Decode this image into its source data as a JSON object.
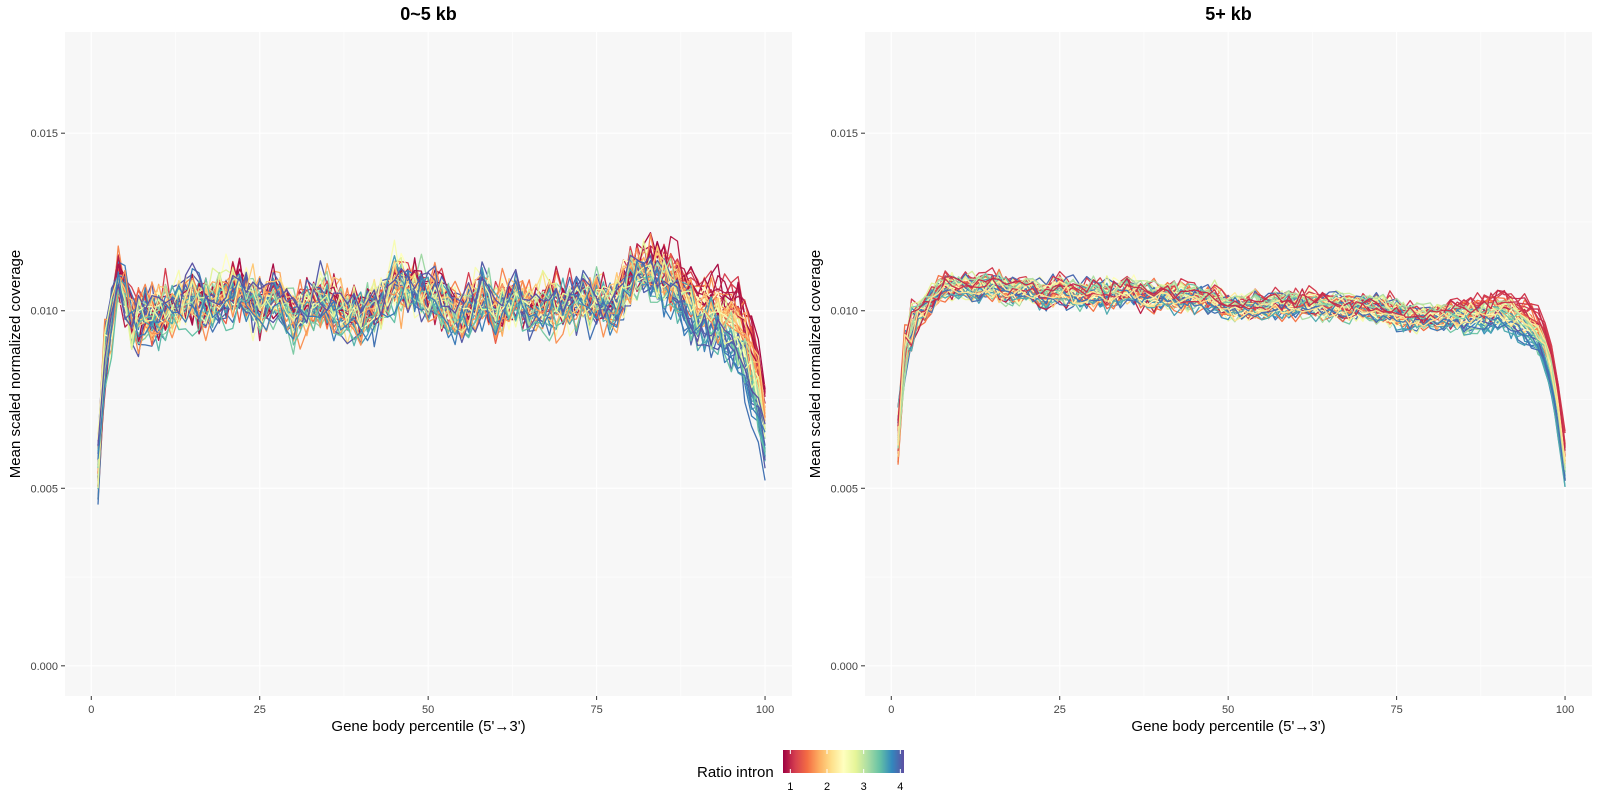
{
  "chart_data": [
    {
      "type": "line",
      "title": "0~5 kb",
      "xlabel": "Gene body percentile (5'→3')",
      "ylabel": "Mean scaled normalized coverage",
      "xlim": [
        -3.9,
        104
      ],
      "ylim": [
        -0.00085,
        0.01785
      ],
      "xticks": [
        0,
        25,
        50,
        75,
        100
      ],
      "yticks": [
        0.0,
        0.005,
        0.01,
        0.015
      ],
      "ytick_labels": [
        "0.000",
        "0.005",
        "0.010",
        "0.015"
      ],
      "grid": true,
      "legend": "bottom",
      "series_count": 48,
      "series_color_value_range": [
        0.8,
        4.1
      ],
      "representative_profile": {
        "x": [
          1,
          2,
          3,
          4,
          5,
          6,
          8,
          10,
          12,
          15,
          18,
          20,
          22,
          25,
          27,
          30,
          33,
          35,
          38,
          40,
          43,
          45,
          48,
          50,
          53,
          55,
          58,
          60,
          63,
          65,
          68,
          70,
          73,
          75,
          78,
          80,
          82,
          84,
          86,
          88,
          90,
          92,
          94,
          96,
          97,
          98,
          99,
          100
        ],
        "y": [
          0.0055,
          0.0085,
          0.0097,
          0.0108,
          0.0104,
          0.0097,
          0.0099,
          0.0098,
          0.0101,
          0.0103,
          0.0102,
          0.0104,
          0.0106,
          0.0101,
          0.0104,
          0.0098,
          0.0101,
          0.0103,
          0.0099,
          0.0098,
          0.0102,
          0.0107,
          0.0106,
          0.0104,
          0.0101,
          0.0099,
          0.0104,
          0.01,
          0.0103,
          0.0099,
          0.0102,
          0.0101,
          0.0103,
          0.0102,
          0.0102,
          0.011,
          0.0112,
          0.0111,
          0.0108,
          0.0104,
          0.01,
          0.0099,
          0.0097,
          0.0094,
          0.009,
          0.0085,
          0.0078,
          0.0068
        ]
      }
    },
    {
      "type": "line",
      "title": "5+ kb",
      "xlabel": "Gene body percentile (5'→3')",
      "ylabel": "Mean scaled normalized coverage",
      "xlim": [
        -3.9,
        104
      ],
      "ylim": [
        -0.00085,
        0.01785
      ],
      "xticks": [
        0,
        25,
        50,
        75,
        100
      ],
      "yticks": [
        0.0,
        0.005,
        0.01,
        0.015
      ],
      "ytick_labels": [
        "0.000",
        "0.005",
        "0.010",
        "0.015"
      ],
      "grid": true,
      "legend": "bottom",
      "series_count": 48,
      "series_color_value_range": [
        0.8,
        4.1
      ],
      "representative_profile": {
        "x": [
          1,
          2,
          3,
          4,
          5,
          6,
          7,
          8,
          10,
          12,
          15,
          18,
          20,
          23,
          25,
          28,
          30,
          33,
          35,
          38,
          40,
          43,
          45,
          48,
          50,
          55,
          60,
          65,
          70,
          75,
          78,
          80,
          85,
          88,
          90,
          92,
          94,
          96,
          97,
          98,
          99,
          100
        ],
        "y": [
          0.0064,
          0.0088,
          0.0096,
          0.0099,
          0.0101,
          0.0103,
          0.0105,
          0.0107,
          0.0107,
          0.0106,
          0.0107,
          0.0105,
          0.0106,
          0.0104,
          0.0106,
          0.0104,
          0.0105,
          0.0104,
          0.0106,
          0.0104,
          0.0104,
          0.0104,
          0.0104,
          0.0103,
          0.0101,
          0.0101,
          0.0102,
          0.0101,
          0.0101,
          0.0099,
          0.0098,
          0.0098,
          0.0099,
          0.0099,
          0.01,
          0.0099,
          0.0097,
          0.0094,
          0.009,
          0.0083,
          0.0072,
          0.0057
        ]
      }
    }
  ],
  "legend": {
    "title": "Ratio intron",
    "range": [
      0.8,
      4.1
    ],
    "ticks": [
      1,
      2,
      3,
      4
    ],
    "tick_labels": [
      "1",
      "2",
      "3",
      "4"
    ],
    "palette": [
      "#9E0142",
      "#D53E4F",
      "#F46D43",
      "#FDAE61",
      "#FEE08B",
      "#FFFFBF",
      "#E6F598",
      "#ABDDA4",
      "#66C2A5",
      "#3288BD",
      "#5E4FA2"
    ]
  },
  "colors": {
    "panel_background": "#F7F7F7",
    "grid_major": "#FFFFFF",
    "tick_mark": "#333333"
  }
}
